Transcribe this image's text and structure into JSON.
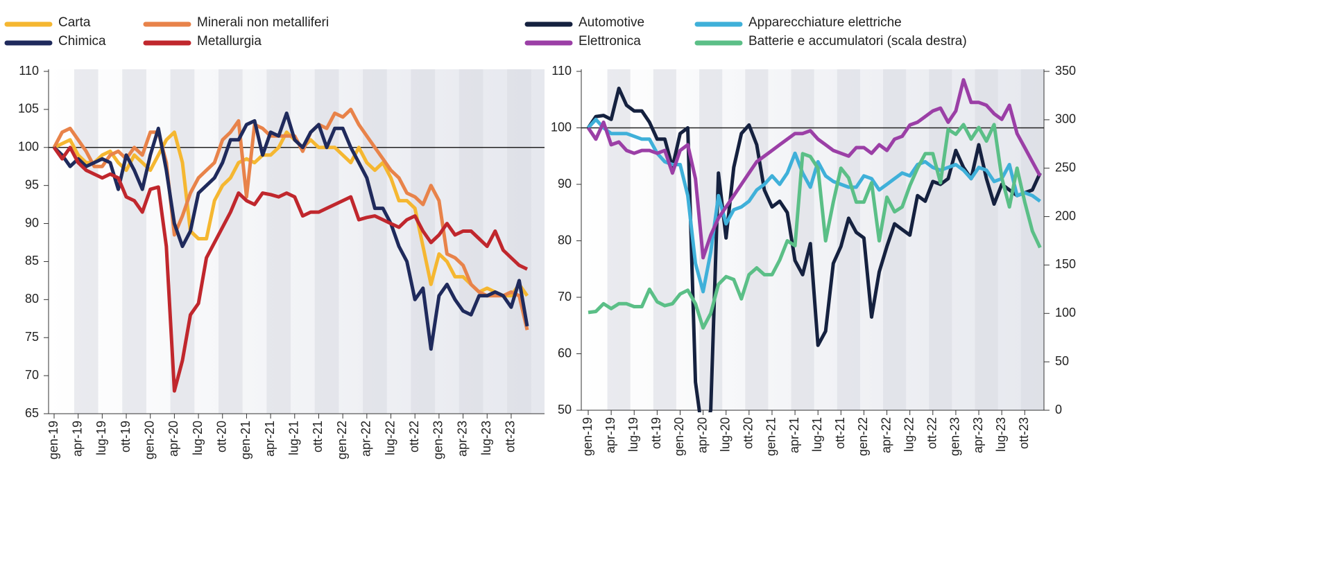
{
  "chart_data": [
    {
      "type": "line",
      "categories": [
        "gen-19",
        null,
        null,
        "apr-19",
        null,
        null,
        "lug-19",
        null,
        null,
        "ott-19",
        null,
        null,
        "gen-20",
        null,
        null,
        "apr-20",
        null,
        null,
        "lug-20",
        null,
        null,
        "ott-20",
        null,
        null,
        "gen-21",
        null,
        null,
        "apr-21",
        null,
        null,
        "lug-21",
        null,
        null,
        "ott-21",
        null,
        null,
        "gen-22",
        null,
        null,
        "apr-22",
        null,
        null,
        "lug-22",
        null,
        null,
        "ott-22",
        null,
        null,
        "gen-23",
        null,
        null,
        "apr-23",
        null,
        null,
        "lug-23",
        null,
        null,
        "ott-23",
        null,
        null
      ],
      "ylim": [
        65,
        110
      ],
      "yticks": [
        65,
        70,
        75,
        80,
        85,
        90,
        95,
        100,
        105,
        110
      ],
      "reference": 100,
      "series": [
        {
          "name": "Carta",
          "color": "#f5b731",
          "values": [
            100,
            100.5,
            101,
            99,
            98,
            98,
            99,
            99.5,
            98,
            97,
            99,
            98,
            97,
            99,
            101,
            102,
            98,
            89,
            88,
            88,
            93,
            95,
            96,
            98,
            98.5,
            98,
            99,
            99,
            100,
            102,
            101,
            100,
            101,
            100,
            100,
            100,
            99,
            98,
            100,
            98,
            97,
            98,
            96,
            93,
            93,
            92,
            87,
            82,
            86,
            85,
            83,
            83,
            82,
            81,
            81.5,
            81,
            80.5,
            80.5,
            82,
            80.5
          ]
        },
        {
          "name": "Minerali non metalliferi",
          "color": "#e8834a",
          "values": [
            100,
            102,
            102.5,
            101,
            99.5,
            97.5,
            97.5,
            99,
            99.5,
            98.5,
            100,
            99,
            102,
            102,
            98,
            88.5,
            91,
            94,
            96,
            97,
            98,
            101,
            102,
            103.5,
            93.5,
            103,
            102.5,
            101.5,
            101.5,
            101.5,
            101.5,
            99.5,
            102,
            103,
            102.5,
            104.5,
            104,
            105,
            103,
            101.5,
            100,
            98.5,
            97,
            96,
            94,
            93.5,
            92.5,
            95,
            93,
            86,
            85.5,
            84.5,
            82,
            81,
            80.5,
            80.5,
            80.5,
            81,
            80.5,
            76
          ]
        },
        {
          "name": "Chimica",
          "color": "#1f2a5c",
          "values": [
            100,
            99,
            97.5,
            98.5,
            97.5,
            98,
            98.5,
            98,
            94.5,
            99,
            97,
            94.5,
            99,
            102.5,
            97,
            90,
            87,
            89,
            94,
            95,
            96,
            98,
            101,
            101,
            103,
            103.5,
            99,
            102,
            101.5,
            104.5,
            101,
            100,
            102,
            103,
            100,
            102.5,
            102.5,
            100,
            98,
            96,
            92,
            92,
            90,
            87,
            85,
            80,
            81.5,
            73.5,
            80.5,
            82,
            80,
            78.5,
            78,
            80.5,
            80.5,
            81,
            80.5,
            79,
            82.5,
            76.5
          ]
        },
        {
          "name": "Metallurgia",
          "color": "#c0272d",
          "values": [
            100,
            98.5,
            100,
            98,
            97,
            96.5,
            96,
            96.5,
            96,
            93.5,
            93,
            91.5,
            94.5,
            94.8,
            87,
            68,
            72,
            78,
            79.5,
            85.5,
            87.5,
            89.5,
            91.5,
            94,
            93,
            92.5,
            94,
            93.8,
            93.5,
            94,
            93.5,
            91,
            91.5,
            91.5,
            92,
            92.5,
            93,
            93.5,
            90.5,
            90.8,
            91,
            90.5,
            90,
            89.5,
            90.5,
            91,
            89,
            87.5,
            88.5,
            90,
            88.5,
            89,
            89,
            88,
            87,
            89,
            86.5,
            85.5,
            84.5,
            84
          ]
        }
      ]
    },
    {
      "type": "line",
      "categories": [
        "gen-19",
        null,
        null,
        "apr-19",
        null,
        null,
        "lug-19",
        null,
        null,
        "ott-19",
        null,
        null,
        "gen-20",
        null,
        null,
        "apr-20",
        null,
        null,
        "lug-20",
        null,
        null,
        "ott-20",
        null,
        null,
        "gen-21",
        null,
        null,
        "apr-21",
        null,
        null,
        "lug-21",
        null,
        null,
        "ott-21",
        null,
        null,
        "gen-22",
        null,
        null,
        "apr-22",
        null,
        null,
        "lug-22",
        null,
        null,
        "ott-22",
        null,
        null,
        "gen-23",
        null,
        null,
        "apr-23",
        null,
        null,
        "lug-23",
        null,
        null,
        "ott-23",
        null,
        null
      ],
      "ylim": [
        50,
        110
      ],
      "yticks": [
        50,
        60,
        70,
        80,
        90,
        100,
        110
      ],
      "y2lim": [
        0,
        350
      ],
      "y2ticks": [
        0,
        50,
        100,
        150,
        200,
        250,
        300,
        350
      ],
      "reference": 100,
      "series": [
        {
          "name": "Automotive",
          "color": "#15213f",
          "values": [
            100,
            102,
            102.2,
            101.5,
            107,
            104,
            103,
            103,
            101,
            98,
            98,
            93,
            99,
            100,
            55,
            45,
            50,
            92,
            80.5,
            93,
            99,
            100.5,
            97,
            89,
            86,
            87,
            85,
            76.5,
            74,
            79.5,
            61.5,
            64,
            76,
            79,
            84,
            81.5,
            80.5,
            66.5,
            74.5,
            79,
            83,
            82,
            81,
            88,
            87,
            90.5,
            90,
            91,
            96,
            93,
            91,
            97,
            91,
            86.5,
            90,
            89,
            88,
            88.5,
            89,
            92
          ]
        },
        {
          "name": "Apparecchiature elettriche",
          "color": "#3fb0d9",
          "values": [
            100,
            101.5,
            100,
            99,
            99,
            99,
            98.5,
            98,
            98,
            95.5,
            94,
            93.5,
            93.5,
            88,
            76,
            71,
            78,
            88,
            83,
            85.5,
            86,
            87,
            89,
            90,
            91.5,
            90,
            92,
            95.5,
            92,
            89.5,
            94,
            91.5,
            90.5,
            90,
            89.5,
            89.5,
            91.5,
            91,
            89,
            90,
            91,
            92,
            91.5,
            93.5,
            94,
            93,
            92.5,
            93,
            93.5,
            92.5,
            91,
            93,
            92.5,
            90.5,
            91,
            93.5,
            88,
            88.5,
            88,
            87
          ]
        },
        {
          "name": "Elettronica",
          "color": "#9b3fa6",
          "values": [
            100,
            98,
            101,
            97,
            97.5,
            96,
            95.5,
            96,
            96,
            95.5,
            96,
            92,
            96,
            97,
            91,
            77,
            81,
            84,
            86,
            88,
            90,
            92,
            94,
            95,
            96,
            97,
            98,
            99,
            99,
            99.5,
            98,
            97,
            96,
            95.5,
            95,
            96.5,
            96.5,
            95.5,
            97,
            96,
            98,
            98.5,
            100.5,
            101,
            102,
            103,
            103.5,
            101,
            103,
            108.5,
            104.5,
            104.5,
            104,
            102.5,
            101.5,
            104,
            99,
            96.5,
            94,
            91.5
          ]
        },
        {
          "name": "Batterie e accumulatori (scala destra)",
          "color": "#5bbf87",
          "axis": "y2",
          "values": [
            101,
            102,
            110,
            105,
            110,
            110,
            107,
            107,
            125,
            112,
            108,
            110,
            120,
            124,
            110,
            85,
            100,
            130,
            138,
            135,
            115,
            140,
            147,
            140,
            140,
            155,
            175,
            170,
            265,
            262,
            250,
            175,
            215,
            250,
            240,
            215,
            215,
            235,
            175,
            220,
            205,
            210,
            232,
            250,
            265,
            265,
            235,
            290,
            285,
            295,
            280,
            292,
            278,
            295,
            240,
            210,
            250,
            215,
            185,
            168
          ]
        }
      ]
    }
  ]
}
